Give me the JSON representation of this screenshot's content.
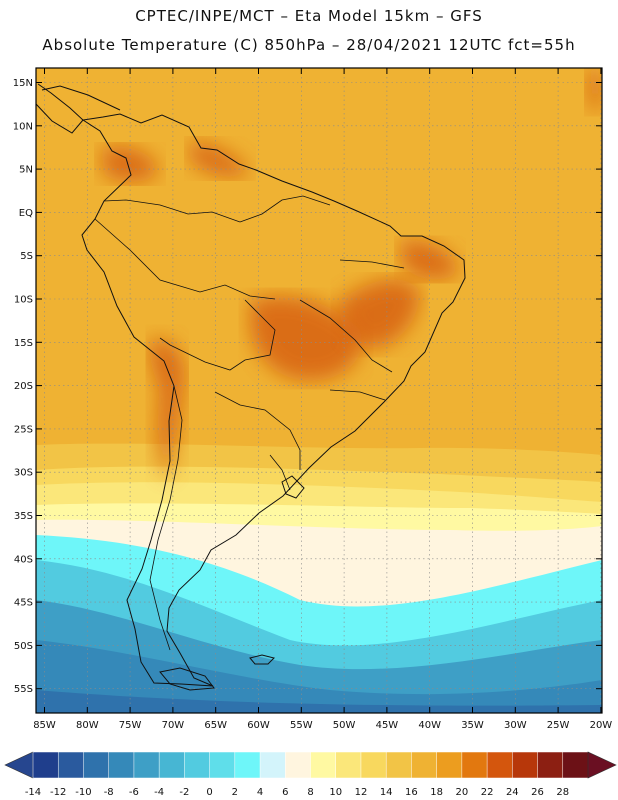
{
  "title_line1": "CPTEC/INPE/MCT –  Eta Model 15km – GFS",
  "title_line2": "Absolute Temperature (C) 850hPa – 28/04/2021 12UTC fct=55h",
  "latitude_labels": [
    "15N",
    "10N",
    "5N",
    "EQ",
    "5S",
    "10S",
    "15S",
    "20S",
    "25S",
    "30S",
    "35S",
    "40S",
    "45S",
    "50S",
    "55S"
  ],
  "longitude_labels": [
    "85W",
    "80W",
    "75W",
    "70W",
    "65W",
    "60W",
    "55W",
    "50W",
    "45W",
    "40W",
    "35W",
    "30W",
    "25W",
    "20W"
  ],
  "colorbar": {
    "unit": "C",
    "labels": [
      "-14",
      "-12",
      "-10",
      "-8",
      "-6",
      "-4",
      "-2",
      "0",
      "2",
      "4",
      "6",
      "8",
      "10",
      "12",
      "14",
      "16",
      "18",
      "20",
      "22",
      "24",
      "26",
      "28"
    ],
    "colors": [
      "#1f3e8c",
      "#2a5a9e",
      "#2f72ac",
      "#3589b9",
      "#3e9fc6",
      "#47b6d3",
      "#52cbe0",
      "#5fdeea",
      "#6ef6f9",
      "#d3f4fb",
      "#fff5df",
      "#fff9a2",
      "#fbe77a",
      "#f8d85e",
      "#f2c446",
      "#efb233",
      "#ec9d1f",
      "#e2780f",
      "#d4560d",
      "#b7370a",
      "#8c1f12",
      "#6c1116"
    ],
    "under_color": "#26468f",
    "over_color": "#6a0f22"
  },
  "fields": {
    "ocean_band_colors": [
      "#efb233",
      "#f2c446",
      "#f8d85e",
      "#fbe77a",
      "#fff9a2",
      "#fff5df",
      "#6ef6f9",
      "#52cbe0",
      "#3e9fc6",
      "#3589b9",
      "#2f72ac"
    ],
    "warm_core_color": "#d4560d"
  }
}
